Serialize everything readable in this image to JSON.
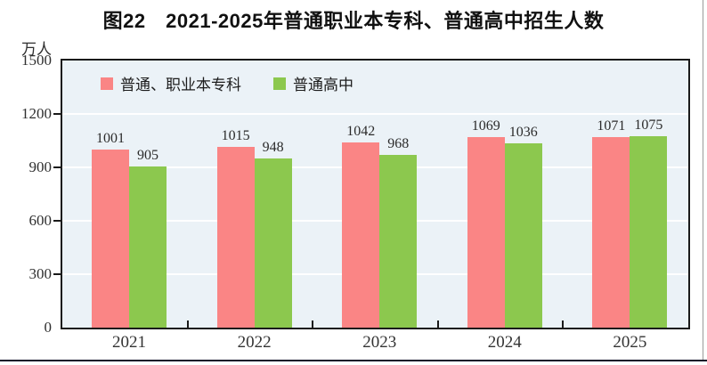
{
  "chart_data": {
    "type": "bar",
    "title": "图22　2021-2025年普通职业本专科、普通高中招生人数",
    "unit_label": "万人",
    "categories": [
      "2021",
      "2022",
      "2023",
      "2024",
      "2025"
    ],
    "series": [
      {
        "name": "普通、职业本专科",
        "color": "#FA8585",
        "values": [
          1001,
          1015,
          1042,
          1069,
          1071
        ]
      },
      {
        "name": "普通高中",
        "color": "#8CC84E",
        "values": [
          905,
          948,
          968,
          1036,
          1075
        ]
      }
    ],
    "y_ticks": [
      0,
      300,
      600,
      900,
      1200,
      1500
    ],
    "ylim": [
      0,
      1500
    ],
    "grid": true,
    "legend_position": "top-inside-left",
    "colors": {
      "plot_bg": "#EBF2F7",
      "gridline": "#FFFFFF",
      "border": "#1A1A1A",
      "axis_text": "#2F2F2F",
      "page_rule_bottom": "#101028",
      "page_rule_right": "#9A9A9A"
    }
  }
}
